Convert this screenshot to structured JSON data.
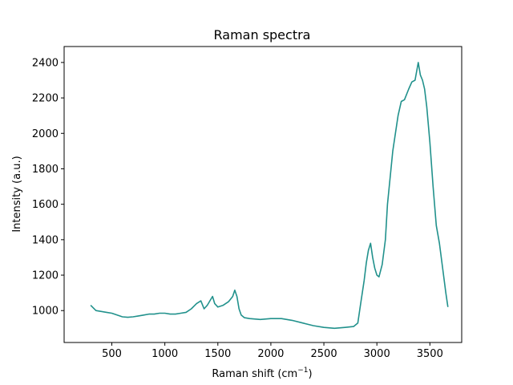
{
  "chart_data": {
    "type": "line",
    "title": "Raman spectra",
    "xlabel_main": "Raman shift (cm",
    "xlabel_sup": "−1",
    "xlabel_close": ")",
    "ylabel": "Intensity (a.u.)",
    "xlim": [
      50,
      3800
    ],
    "ylim": [
      820,
      2490
    ],
    "xticks": [
      500,
      1000,
      1500,
      2000,
      2500,
      3000,
      3500
    ],
    "yticks": [
      1000,
      1200,
      1400,
      1600,
      1800,
      2000,
      2200,
      2400
    ],
    "grid": false,
    "series": [
      {
        "color": "#21918c",
        "x": [
          300,
          350,
          400,
          450,
          500,
          550,
          600,
          650,
          700,
          750,
          800,
          850,
          900,
          950,
          1000,
          1050,
          1100,
          1150,
          1200,
          1250,
          1300,
          1340,
          1370,
          1400,
          1430,
          1450,
          1470,
          1500,
          1550,
          1600,
          1640,
          1660,
          1680,
          1700,
          1720,
          1750,
          1800,
          1900,
          2000,
          2100,
          2200,
          2300,
          2400,
          2500,
          2600,
          2700,
          2780,
          2820,
          2850,
          2880,
          2900,
          2920,
          2940,
          2960,
          2980,
          3000,
          3020,
          3050,
          3080,
          3100,
          3150,
          3200,
          3230,
          3260,
          3300,
          3330,
          3360,
          3390,
          3410,
          3430,
          3450,
          3470,
          3500,
          3530,
          3560,
          3590,
          3620,
          3650,
          3670
        ],
        "y": [
          1030,
          1000,
          995,
          990,
          985,
          975,
          965,
          962,
          965,
          970,
          975,
          980,
          980,
          985,
          985,
          980,
          980,
          985,
          990,
          1010,
          1040,
          1055,
          1010,
          1030,
          1060,
          1080,
          1040,
          1020,
          1030,
          1050,
          1080,
          1115,
          1080,
          1010,
          975,
          960,
          955,
          950,
          955,
          955,
          945,
          930,
          915,
          905,
          900,
          905,
          910,
          930,
          1050,
          1170,
          1270,
          1340,
          1380,
          1300,
          1240,
          1200,
          1190,
          1260,
          1400,
          1600,
          1900,
          2100,
          2180,
          2190,
          2250,
          2290,
          2300,
          2400,
          2330,
          2300,
          2250,
          2150,
          1950,
          1700,
          1480,
          1380,
          1240,
          1100,
          1020
        ]
      }
    ]
  }
}
